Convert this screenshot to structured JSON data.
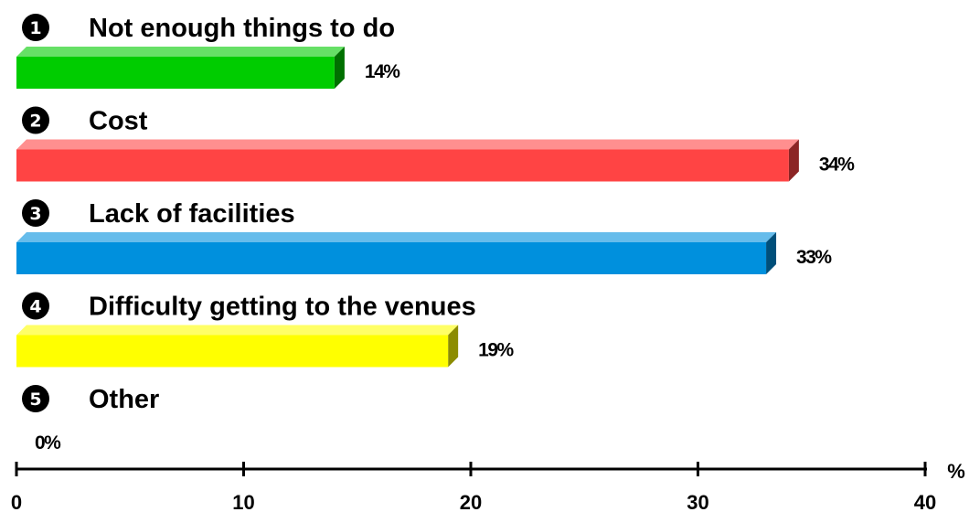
{
  "chart_data": {
    "type": "bar",
    "orientation": "horizontal",
    "categories": [
      "Not enough things to do",
      "Cost",
      "Lack of facilities",
      "Difficulty getting to the venues",
      "Other"
    ],
    "category_numbers": [
      "1",
      "2",
      "3",
      "4",
      "5"
    ],
    "values": [
      14,
      34,
      33,
      19,
      0
    ],
    "value_labels": [
      "14%",
      "34%",
      "33%",
      "19%",
      "0%"
    ],
    "colors": [
      "#00cc00",
      "#ff4444",
      "#0090dd",
      "#ffff00",
      "#cccccc"
    ],
    "xlim": [
      0,
      40
    ],
    "xticks": [
      0,
      10,
      20,
      30,
      40
    ],
    "tick_labels": [
      "0",
      "10",
      "20",
      "30",
      "40"
    ],
    "xlabel": "%",
    "grid": false,
    "bar_style": "3d"
  }
}
